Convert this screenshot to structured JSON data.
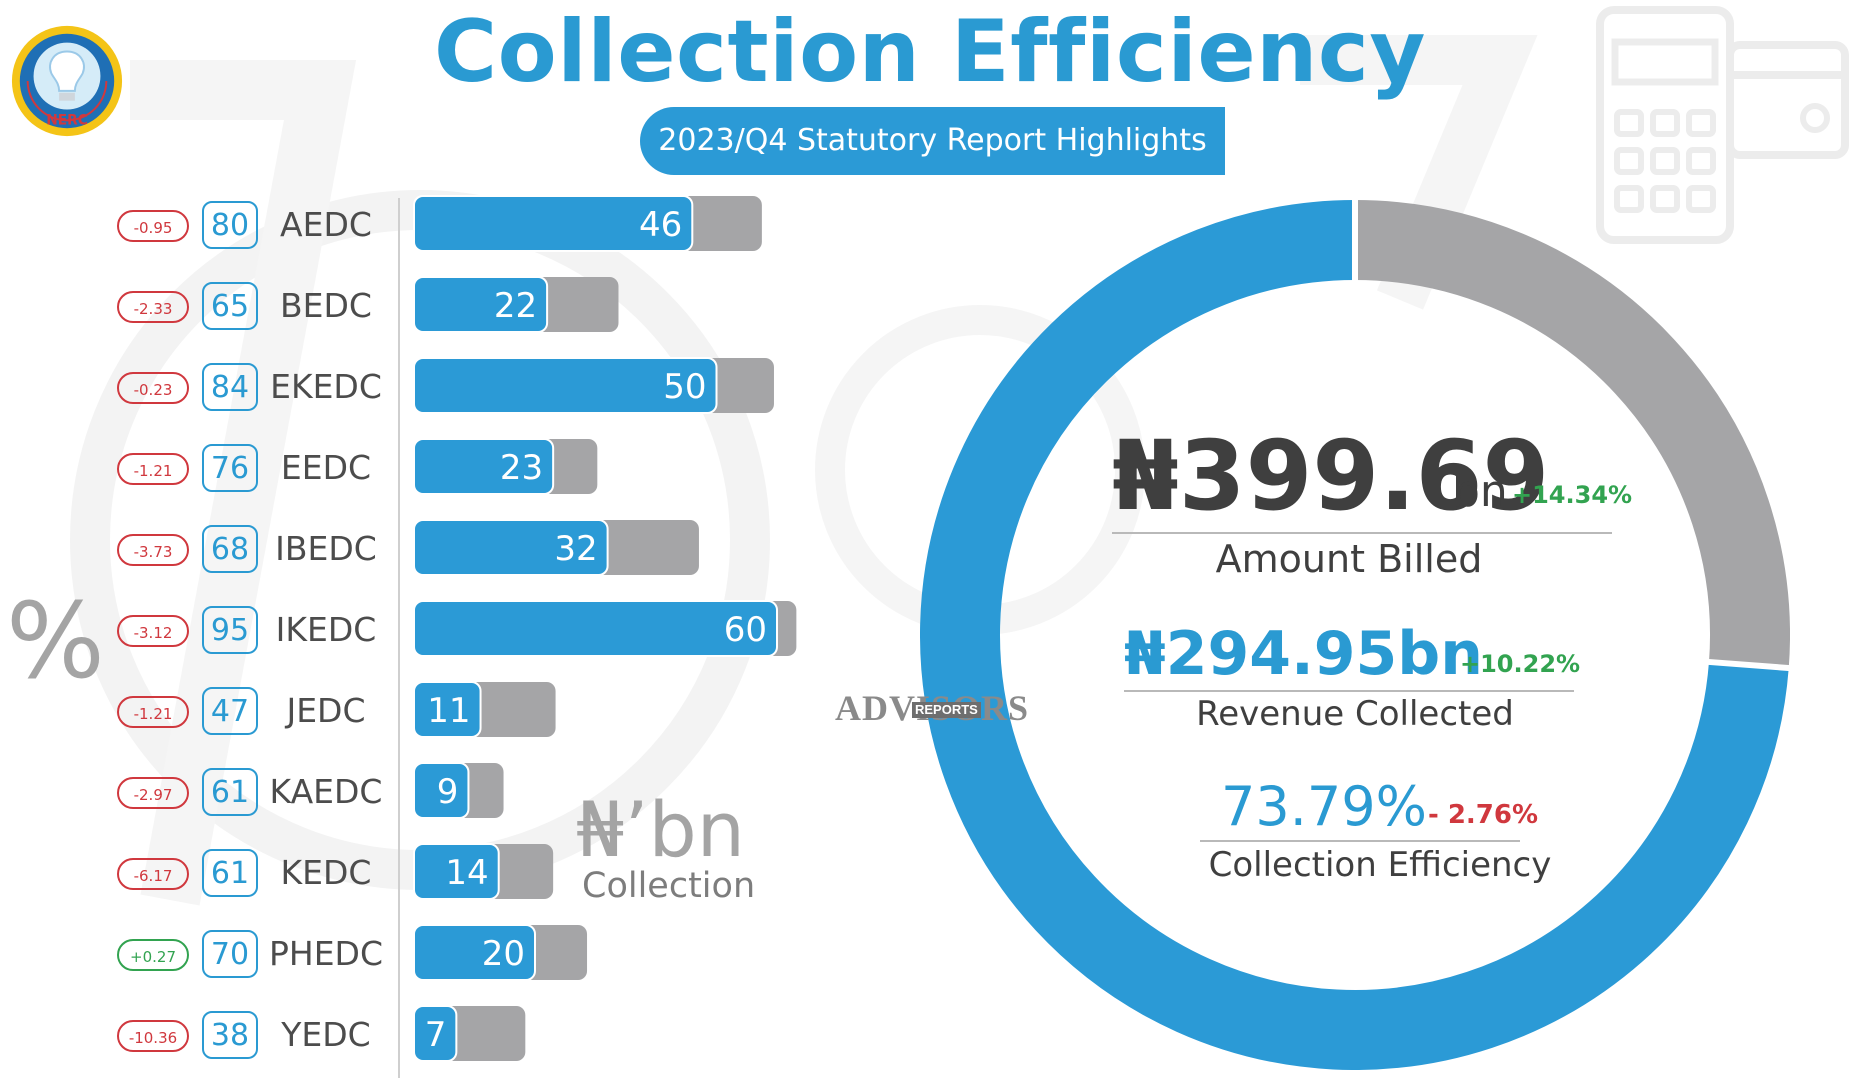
{
  "header": {
    "title": "Collection Efficiency",
    "subtitle": "2023/Q4 Statutory Report Highlights",
    "logo_text": "NERC"
  },
  "left_labels": {
    "percent_axis_symbol": "%",
    "unit_label": "₦’bn",
    "unit_sublabel": "Collection"
  },
  "watermark": {
    "text": "ADVISORS",
    "badge": "REPORTS"
  },
  "chart_data": [
    {
      "type": "bar",
      "orientation": "horizontal",
      "categories": [
        "AEDC",
        "BEDC",
        "EKEDC",
        "EEDC",
        "IBEDC",
        "IKEDC",
        "JEDC",
        "KAEDC",
        "KEDC",
        "PHEDC",
        "YEDC"
      ],
      "collection_efficiency_pct": [
        80,
        65,
        84,
        76,
        68,
        95,
        47,
        61,
        61,
        70,
        38
      ],
      "ce_change_pct_label": [
        "-0.95",
        "-2.33",
        "-0.23",
        "-1.21",
        "-3.73",
        "-3.12",
        "-1.21",
        "-2.97",
        "-6.17",
        "+0.27",
        "-10.36"
      ],
      "ce_change_pct": [
        -0.95,
        -2.33,
        -0.23,
        -1.21,
        -3.73,
        -3.12,
        -1.21,
        -2.97,
        -6.17,
        0.27,
        -10.36
      ],
      "series": [
        {
          "values": [
            46,
            22,
            50,
            23,
            32,
            60,
            11,
            9,
            14,
            20,
            7
          ]
        },
        {
          "values": [
            57.5,
            33.8,
            59.5,
            30.3,
            47.1,
            63.2,
            23.4,
            14.8,
            23,
            28.6,
            18.4
          ]
        }
      ],
      "unit": "₦’bn",
      "unit_note": "Collection",
      "xlim": [
        0,
        70
      ],
      "colors": {
        "collected": "#2b9ad6",
        "billed": "#a5a5a7"
      }
    },
    {
      "type": "pie",
      "style": "donut",
      "slices": [
        {
          "value": 73.79,
          "color": "#2b9ad6"
        },
        {
          "value": 26.21,
          "color": "#a5a5a7"
        }
      ]
    }
  ],
  "kpis": {
    "amount_billed": {
      "value": "₦399.69",
      "unit": "bn",
      "change": "+14.34%",
      "label": "Amount Billed"
    },
    "revenue_collected": {
      "value": "₦294.95bn",
      "change": "+10.22%",
      "label": "Revenue Collected"
    },
    "collection_efficiency": {
      "value": "73.79%",
      "change": "- 2.76%",
      "label": "Collection Efficiency"
    }
  },
  "colors": {
    "accent_blue": "#2b9ad6",
    "bar_grey": "#a5a5a7",
    "negative_red": "#d0383e",
    "positive_green": "#32a350",
    "text_dark": "#3f3f3f"
  }
}
